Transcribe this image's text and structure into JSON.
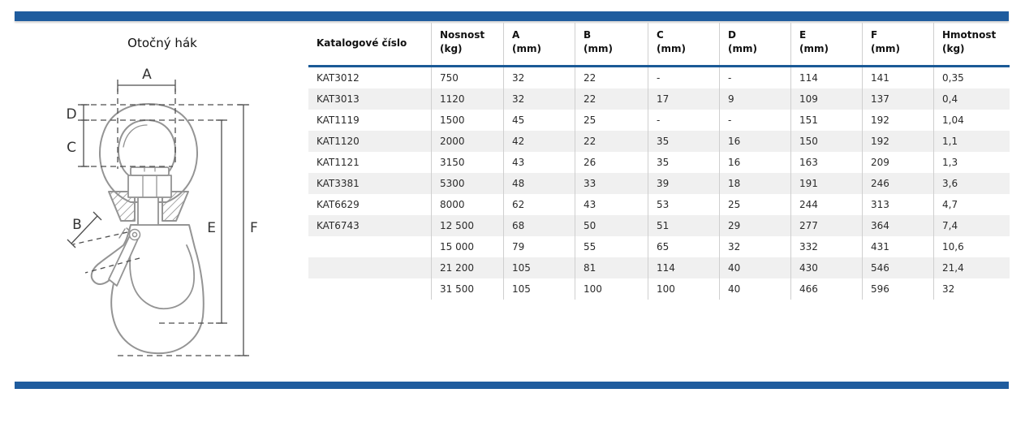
{
  "page": {
    "kind": "product-catalog-sheet"
  },
  "colors": {
    "accent_bar": "#1F5C9E",
    "header_underline": "#1B5A96",
    "row_stripe": "#F0F0F0",
    "grid_line": "#CFCFCF"
  },
  "diagram": {
    "title": "Otočný hák",
    "labels": {
      "a": "A",
      "b": "B",
      "c": "C",
      "d": "D",
      "e": "E",
      "f": "F"
    }
  },
  "table": {
    "columns": [
      {
        "label": "Katalogové číslo",
        "unit": ""
      },
      {
        "label": "Nosnost",
        "unit": "(kg)"
      },
      {
        "label": "A",
        "unit": "(mm)"
      },
      {
        "label": "B",
        "unit": "(mm)"
      },
      {
        "label": "C",
        "unit": "(mm)"
      },
      {
        "label": "D",
        "unit": "(mm)"
      },
      {
        "label": "E",
        "unit": "(mm)"
      },
      {
        "label": "F",
        "unit": "(mm)"
      },
      {
        "label": "Hmotnost",
        "unit": "(kg)"
      }
    ],
    "rows": [
      [
        "KAT3012",
        "750",
        "32",
        "22",
        "-",
        "-",
        "114",
        "141",
        "0,35"
      ],
      [
        "KAT3013",
        "1120",
        "32",
        "22",
        "17",
        "9",
        "109",
        "137",
        "0,4"
      ],
      [
        "KAT1119",
        "1500",
        "45",
        "25",
        "-",
        "-",
        "151",
        "192",
        "1,04"
      ],
      [
        "KAT1120",
        "2000",
        "42",
        "22",
        "35",
        "16",
        "150",
        "192",
        "1,1"
      ],
      [
        "KAT1121",
        "3150",
        "43",
        "26",
        "35",
        "16",
        "163",
        "209",
        "1,3"
      ],
      [
        "KAT3381",
        "5300",
        "48",
        "33",
        "39",
        "18",
        "191",
        "246",
        "3,6"
      ],
      [
        "KAT6629",
        "8000",
        "62",
        "43",
        "53",
        "25",
        "244",
        "313",
        "4,7"
      ],
      [
        "KAT6743",
        "12 500",
        "68",
        "50",
        "51",
        "29",
        "277",
        "364",
        "7,4"
      ],
      [
        "",
        "15 000",
        "79",
        "55",
        "65",
        "32",
        "332",
        "431",
        "10,6"
      ],
      [
        "",
        "21 200",
        "105",
        "81",
        "114",
        "40",
        "430",
        "546",
        "21,4"
      ],
      [
        "",
        "31 500",
        "105",
        "100",
        "100",
        "40",
        "466",
        "596",
        "32"
      ]
    ]
  }
}
